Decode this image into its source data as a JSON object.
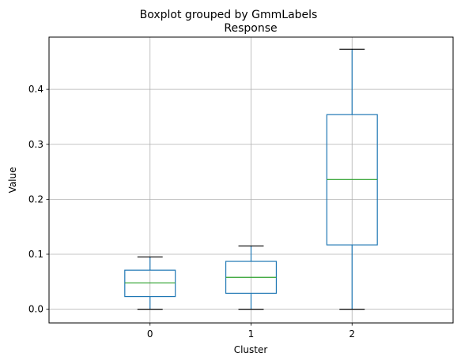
{
  "chart_data": {
    "type": "boxplot",
    "suptitle": "Boxplot grouped by GmmLabels",
    "title": "Response",
    "xlabel": "Cluster",
    "ylabel": "Value",
    "categories": [
      "0",
      "1",
      "2"
    ],
    "ylim": [
      -0.025,
      0.495
    ],
    "yticks": [
      0.0,
      0.1,
      0.2,
      0.3,
      0.4
    ],
    "ytick_labels": [
      "0.0",
      "0.1",
      "0.2",
      "0.3",
      "0.4"
    ],
    "grid": true,
    "boxes": [
      {
        "category": "0",
        "whisker_low": 0.0,
        "q1": 0.023,
        "median": 0.048,
        "q3": 0.071,
        "whisker_high": 0.095
      },
      {
        "category": "1",
        "whisker_low": 0.0,
        "q1": 0.029,
        "median": 0.058,
        "q3": 0.087,
        "whisker_high": 0.115
      },
      {
        "category": "2",
        "whisker_low": 0.0,
        "q1": 0.117,
        "median": 0.236,
        "q3": 0.354,
        "whisker_high": 0.473
      }
    ],
    "colors": {
      "box": "#1f77b4",
      "median": "#2ca02c",
      "cap": "#000000",
      "grid": "#b0b0b0",
      "spine": "#000000"
    }
  }
}
